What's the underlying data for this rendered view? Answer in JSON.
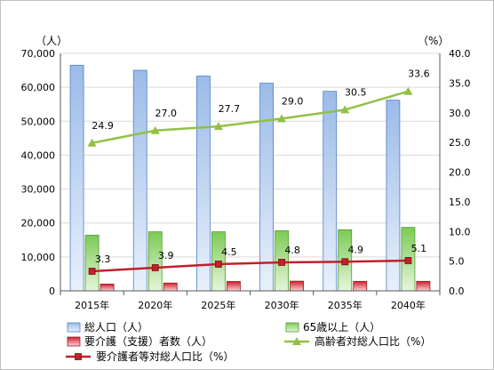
{
  "chart_data": {
    "type": "bar",
    "categories": [
      "2015年",
      "2020年",
      "2025年",
      "2030年",
      "2035年",
      "2040年"
    ],
    "series": [
      {
        "name": "総人口（人）",
        "type": "bar",
        "axis": "left",
        "color": "#a6c4ec",
        "values": [
          66500,
          65000,
          63300,
          61200,
          58800,
          56200
        ]
      },
      {
        "name": "65歳以上（人）",
        "type": "bar",
        "axis": "left",
        "color": "#8fd16d",
        "values": [
          16400,
          17400,
          17400,
          17700,
          18000,
          18700
        ]
      },
      {
        "name": "要介護（支援）者数（人）",
        "type": "bar",
        "axis": "left",
        "color": "#d32d3a",
        "values": [
          2000,
          2300,
          2750,
          2850,
          2800,
          2800
        ]
      },
      {
        "name": "高齢者対総人口比（%）",
        "type": "line",
        "axis": "right",
        "color": "#92c047",
        "values": [
          24.9,
          27.0,
          27.7,
          29.0,
          30.5,
          33.6
        ],
        "labels": [
          "24.9",
          "27.0",
          "27.7",
          "29.0",
          "30.5",
          "33.6"
        ]
      },
      {
        "name": "要介護者等対総人口比（%）",
        "type": "line",
        "axis": "right",
        "color": "#c0212a",
        "values": [
          3.3,
          3.9,
          4.5,
          4.8,
          4.9,
          5.1
        ],
        "labels": [
          "3.3",
          "3.9",
          "4.5",
          "4.8",
          "4.9",
          "5.1"
        ]
      }
    ],
    "y_left": {
      "unit": "（人）",
      "min": 0,
      "max": 70000,
      "ticks": [
        "0",
        "10,000",
        "20,000",
        "30,000",
        "40,000",
        "50,000",
        "60,000",
        "70,000"
      ]
    },
    "y_right": {
      "unit": "（%）",
      "min": 0,
      "max": 40,
      "ticks": [
        "0.0",
        "5.0",
        "10.0",
        "15.0",
        "20.0",
        "25.0",
        "30.0",
        "35.0",
        "40.0"
      ]
    },
    "grid": true,
    "legend_position": "bottom"
  }
}
